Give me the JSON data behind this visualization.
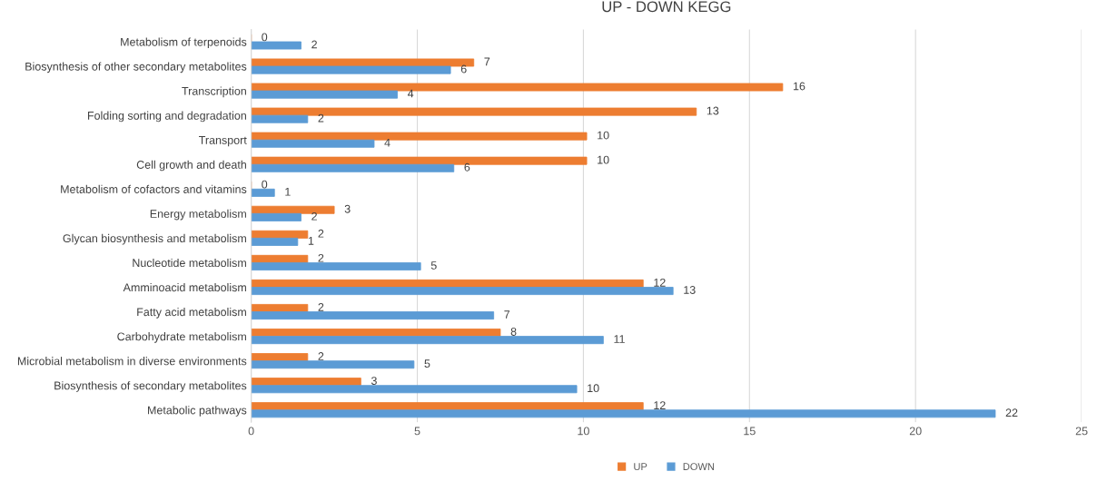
{
  "chart_data": {
    "type": "bar",
    "orientation": "horizontal",
    "title": "UP - DOWN KEGG",
    "categories": [
      "Metabolism of terpenoids",
      "Biosynthesis of other secondary metabolites",
      "Transcription",
      "Folding sorting and degradation",
      "Transport",
      "Cell growth and death",
      "Metabolism of cofactors and vitamins",
      "Energy metabolism",
      "Glycan biosynthesis and metabolism",
      "Nucleotide metabolism",
      "Amminoacid metabolism",
      "Fatty acid metabolism",
      "Carbohydrate metabolism",
      "Microbial metabolism in diverse environments",
      "Biosynthesis of secondary metabolites",
      "Metabolic pathways"
    ],
    "series": [
      {
        "name": "UP",
        "color": "#ed7d31",
        "values": [
          0,
          6.7,
          16.0,
          13.4,
          10.1,
          10.1,
          0,
          2.5,
          1.7,
          1.7,
          11.8,
          1.7,
          7.5,
          1.7,
          3.3,
          11.8
        ],
        "value_labels": [
          "0",
          "7",
          "16",
          "13",
          "10",
          "10",
          "0",
          "3",
          "2",
          "2",
          "12",
          "2",
          "8",
          "2",
          "3",
          "12"
        ]
      },
      {
        "name": "DOWN",
        "color": "#5b9bd5",
        "values": [
          1.5,
          6.0,
          4.4,
          1.7,
          3.7,
          6.1,
          0.7,
          1.5,
          1.4,
          5.1,
          12.7,
          7.3,
          10.6,
          4.9,
          9.8,
          22.4
        ],
        "value_labels": [
          "2",
          "6",
          "4",
          "2",
          "4",
          "6",
          "1",
          "2",
          "1",
          "5",
          "13",
          "7",
          "11",
          "5",
          "10",
          "22"
        ]
      }
    ],
    "xlim": [
      0,
      25
    ],
    "xticks": [
      0,
      5,
      10,
      15,
      20,
      25
    ],
    "grid": "x",
    "legend": "bottom"
  }
}
